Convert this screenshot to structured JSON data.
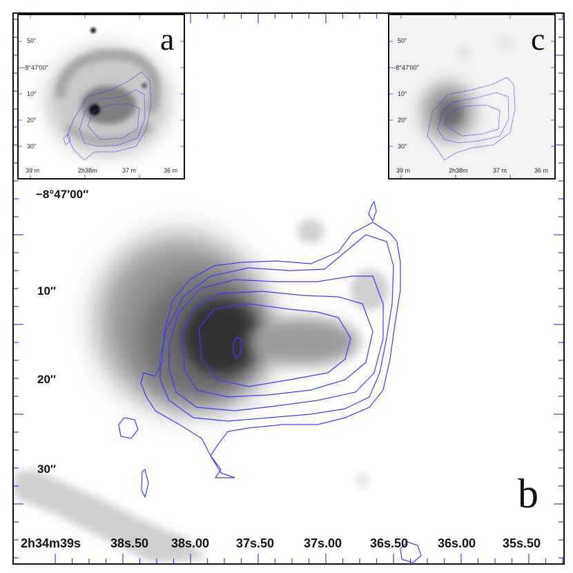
{
  "figure": {
    "main_panel": {
      "letter": "b",
      "y_ticks": [
        "−8°47′00″",
        "10″",
        "20″",
        "30″"
      ],
      "x_ticks": [
        "2h34m39s",
        "38s.50",
        "38s.00",
        "37s.50",
        "37s.00",
        "36s.50",
        "36s.00",
        "35s.50"
      ]
    },
    "inset_a": {
      "letter": "a",
      "y_ticks": [
        "50″",
        "−8°47′00″",
        "10″",
        "20″",
        "30″"
      ],
      "x_ticks": [
        "39 m",
        "2h38m",
        "37 m",
        "36 m"
      ]
    },
    "inset_c": {
      "letter": "c",
      "y_ticks": [
        "50″",
        "−8°47′00″",
        "10″",
        "20″",
        "30″"
      ],
      "x_ticks": [
        "39 m",
        "2h38m",
        "37 m",
        "36 m"
      ]
    },
    "colors": {
      "contour": "#3a3aff",
      "frame": "#111111",
      "tick_marks": "#3a3aff"
    }
  }
}
